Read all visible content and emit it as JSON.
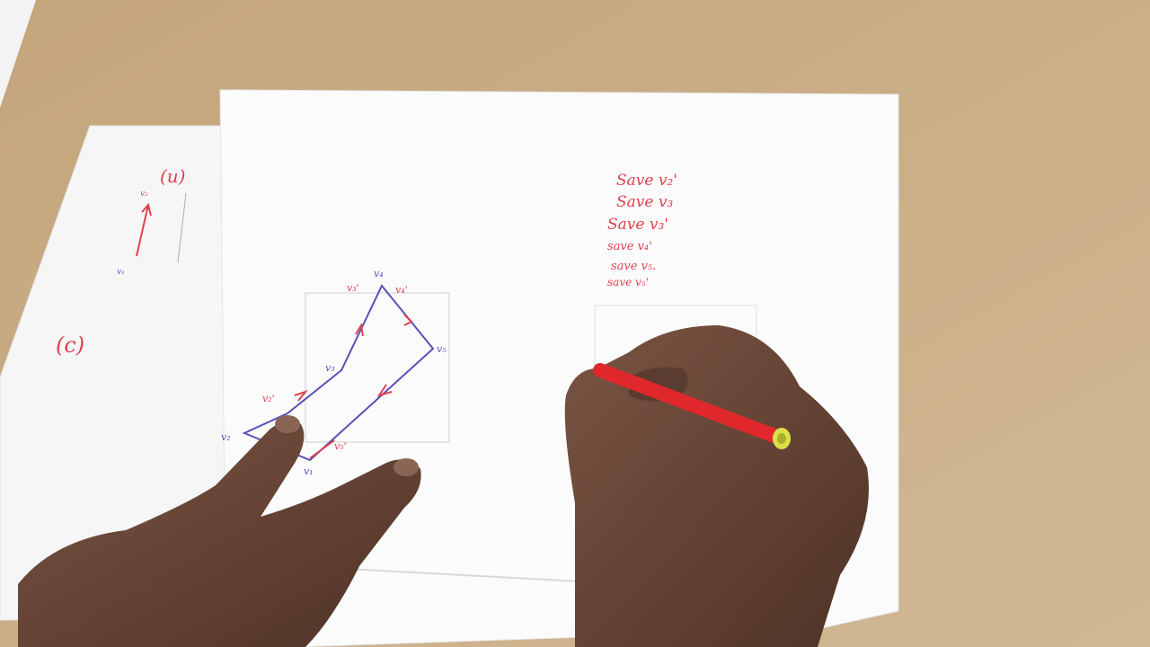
{
  "colors": {
    "desk": "#c9ad86",
    "paper": "#fbfbfb",
    "red_ink": "#e0404f",
    "blue_ink": "#5a4fb8",
    "skin": "#6b4a3a",
    "pen": "#e0282c",
    "pen_cap": "#d9e04a"
  },
  "left_sheet": {
    "label_u": "(u)",
    "label_c": "(c)",
    "vertex_top": "v₂",
    "vertex_bottom": "v₁"
  },
  "polygon": {
    "vertices": {
      "v1": "v₁",
      "v2": "v₂",
      "v3": "v₃",
      "v4": "v₄",
      "v5": "v₅"
    },
    "intersections": {
      "v2p": "v₂'",
      "v3p": "v₃'",
      "v4p": "v₄'",
      "v5p": "v₅'"
    }
  },
  "save_list": [
    "Save v₂'",
    "Save v₃",
    "Save v₃'",
    "save v₄'",
    "save v₅.",
    "save v₅'"
  ]
}
